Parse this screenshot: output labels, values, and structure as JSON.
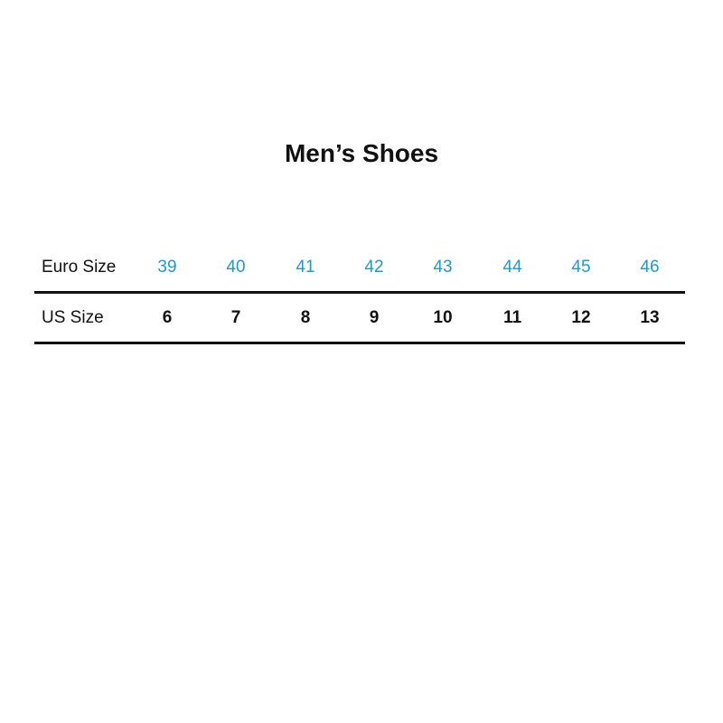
{
  "title": "Men’s Shoes",
  "colors": {
    "euro_values": "#1a9ad6",
    "text": "#111111"
  },
  "table": {
    "rows": [
      {
        "label": "Euro Size",
        "values": [
          "39",
          "40",
          "41",
          "42",
          "43",
          "44",
          "45",
          "46"
        ]
      },
      {
        "label": "US Size",
        "values": [
          "6",
          "7",
          "8",
          "9",
          "10",
          "11",
          "12",
          "13"
        ]
      }
    ]
  }
}
